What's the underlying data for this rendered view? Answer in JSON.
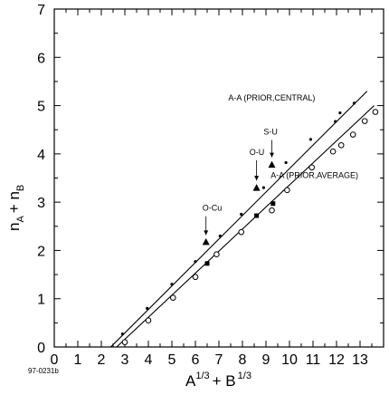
{
  "chart_data": {
    "type": "scatter",
    "figure_id": "97-0231b",
    "xlabel": {
      "base1": "A",
      "sup1": "1/3",
      "plus": "+ B",
      "sup2": "1/3"
    },
    "ylabel": {
      "n1": "n",
      "sub1": "A",
      "plus": "+ n",
      "sub2": "B"
    },
    "xlim": [
      0,
      14
    ],
    "ylim": [
      0,
      7
    ],
    "xticks": [
      0,
      1,
      2,
      3,
      4,
      5,
      6,
      7,
      8,
      9,
      10,
      11,
      12,
      13
    ],
    "yticks": [
      0,
      1,
      2,
      3,
      4,
      5,
      6,
      7
    ],
    "grid": false,
    "lines": [
      {
        "name": "A-A (PRIOR,CENTRAL)",
        "x": [
          2.4,
          13.3
        ],
        "y": [
          0.0,
          5.3
        ]
      },
      {
        "name": "A-A (PRIOR,AVERAGE)",
        "x": [
          2.65,
          13.6
        ],
        "y": [
          0.0,
          5.0
        ]
      }
    ],
    "series": [
      {
        "name": "A-A (PRIOR,CENTRAL)",
        "marker": "dot",
        "x": [
          2.9,
          3.95,
          5.0,
          6.0,
          7.05,
          7.95,
          8.9,
          9.85,
          10.9,
          11.95,
          12.15,
          12.75
        ],
        "y": [
          0.27,
          0.8,
          1.3,
          1.77,
          2.3,
          2.75,
          3.3,
          3.82,
          4.3,
          4.67,
          4.85,
          5.05
        ]
      },
      {
        "name": "A-A (PRIOR,AVERAGE)",
        "marker": "open-circle",
        "x": [
          3.0,
          4.0,
          5.05,
          6.0,
          6.9,
          7.95,
          9.25,
          9.9,
          10.95,
          11.85,
          12.2,
          12.7,
          13.2,
          13.65
        ],
        "y": [
          0.1,
          0.55,
          1.02,
          1.45,
          1.92,
          2.38,
          2.83,
          3.25,
          3.72,
          4.05,
          4.18,
          4.4,
          4.68,
          4.87
        ]
      },
      {
        "name": "reaction-triangles",
        "marker": "filled-triangle",
        "x": [
          6.45,
          8.6,
          9.25
        ],
        "y": [
          2.18,
          3.3,
          3.78
        ]
      },
      {
        "name": "reaction-squares",
        "marker": "filled-square",
        "x": [
          6.5,
          8.6,
          9.3
        ],
        "y": [
          1.73,
          2.72,
          2.97
        ]
      }
    ],
    "annotations": [
      {
        "text": "A-A (PRIOR,CENTRAL)",
        "x": 7.4,
        "y": 5.1
      },
      {
        "text": "A-A (PRIOR,AVERAGE)",
        "x": 9.2,
        "y": 3.5
      },
      {
        "text": "O-Cu",
        "x": 6.3,
        "y": 2.82,
        "arrow_to": [
          6.45,
          2.32
        ]
      },
      {
        "text": "O-U",
        "x": 8.3,
        "y": 3.98,
        "arrow_to": [
          8.6,
          3.45
        ]
      },
      {
        "text": "S-U",
        "x": 8.9,
        "y": 4.4,
        "arrow_to": [
          9.25,
          3.93
        ]
      }
    ]
  }
}
